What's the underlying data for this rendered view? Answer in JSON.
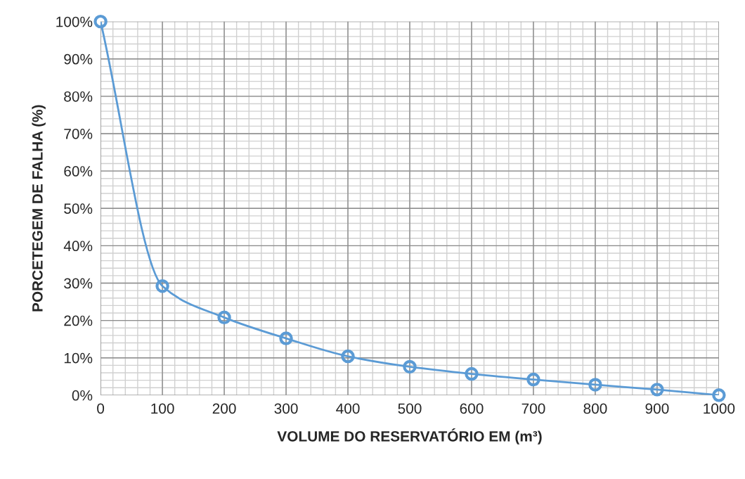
{
  "chart_data": {
    "type": "line",
    "xlabel": "VOLUME DO RESERVATÓRIO EM (m³)",
    "ylabel": "PORCETEGEM DE FALHA (%)",
    "x": [
      0,
      100,
      200,
      300,
      400,
      500,
      600,
      700,
      800,
      900,
      1000
    ],
    "series": [
      {
        "color": "#5b9bd5",
        "values": [
          100,
          29.2,
          20.8,
          15.2,
          10.4,
          7.6,
          5.7,
          4.2,
          2.8,
          1.5,
          0
        ]
      }
    ],
    "xlim": [
      0,
      1000
    ],
    "ylim": [
      0,
      100
    ],
    "xticks": [
      0,
      100,
      200,
      300,
      400,
      500,
      600,
      700,
      800,
      900,
      1000
    ],
    "yticks": [
      {
        "value": 0,
        "label": "0%"
      },
      {
        "value": 10,
        "label": "10%"
      },
      {
        "value": 20,
        "label": "20%"
      },
      {
        "value": 30,
        "label": "30%"
      },
      {
        "value": 40,
        "label": "40%"
      },
      {
        "value": 50,
        "label": "50%"
      },
      {
        "value": 60,
        "label": "60%"
      },
      {
        "value": 70,
        "label": "70%"
      },
      {
        "value": 80,
        "label": "80%"
      },
      {
        "value": 90,
        "label": "90%"
      },
      {
        "value": 100,
        "label": "100%"
      }
    ],
    "grid": true,
    "marker": "circle",
    "line_style": "solid"
  }
}
